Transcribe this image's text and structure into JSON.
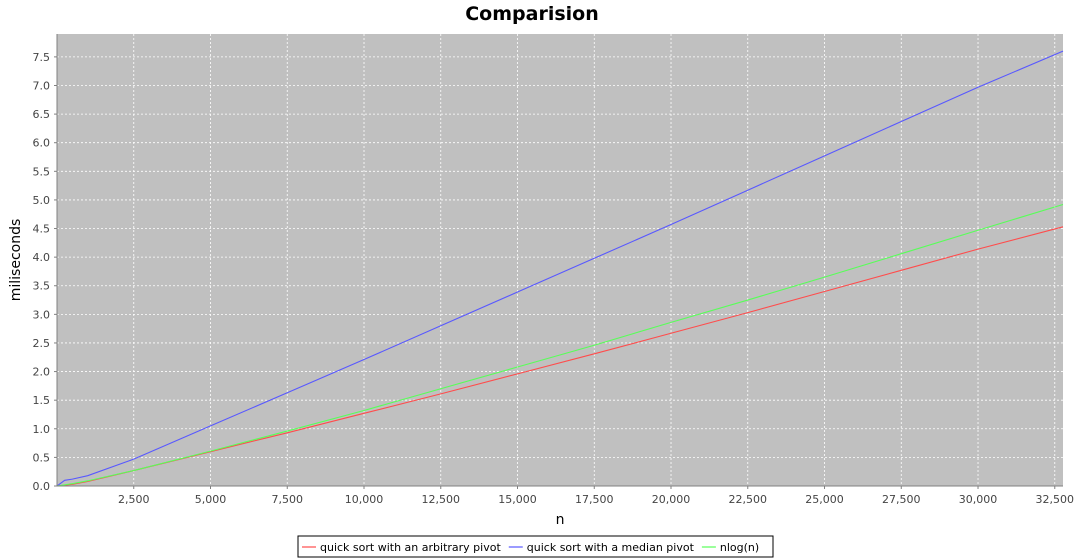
{
  "chart_data": {
    "type": "line",
    "title": "Comparision",
    "xlabel": "n",
    "ylabel": "miliseconds",
    "xlim": [
      0,
      32768
    ],
    "ylim": [
      0,
      7.9
    ],
    "x_ticks": [
      "2,500",
      "5,000",
      "7,500",
      "10,000",
      "12,500",
      "15,000",
      "17,500",
      "20,000",
      "22,500",
      "25,000",
      "27,500",
      "30,000",
      "32,500"
    ],
    "y_ticks": [
      "0.0",
      "0.5",
      "1.0",
      "1.5",
      "2.0",
      "2.5",
      "3.0",
      "3.5",
      "4.0",
      "4.5",
      "5.0",
      "5.5",
      "6.0",
      "6.5",
      "7.0",
      "7.5"
    ],
    "grid": true,
    "background": "#c0c0c0",
    "legend_position": "bottom",
    "series": [
      {
        "name": "quick sort with an arbitrary pivot",
        "color": "#ff4c4c",
        "x": [
          0,
          500,
          1000,
          2500,
          5000,
          7500,
          10000,
          12500,
          15000,
          17500,
          20000,
          22500,
          25000,
          27500,
          30000,
          32768
        ],
        "y": [
          0,
          0.03,
          0.08,
          0.27,
          0.6,
          0.93,
          1.27,
          1.61,
          1.96,
          2.31,
          2.67,
          3.03,
          3.4,
          3.77,
          4.14,
          4.53
        ]
      },
      {
        "name": "quick sort with a median pivot",
        "color": "#5858ff",
        "x": [
          0,
          250,
          500,
          1000,
          2500,
          5000,
          7500,
          10000,
          12500,
          15000,
          17500,
          20000,
          22500,
          25000,
          27500,
          30000,
          32768
        ],
        "y": [
          0,
          0.1,
          0.12,
          0.18,
          0.47,
          1.05,
          1.63,
          2.21,
          2.8,
          3.39,
          3.98,
          4.57,
          5.17,
          5.77,
          6.37,
          6.97,
          7.6
        ]
      },
      {
        "name": "nlog(n)",
        "color": "#58ff58",
        "x": [
          0,
          500,
          1000,
          2500,
          5000,
          7500,
          10000,
          12500,
          15000,
          17500,
          20000,
          22500,
          25000,
          27500,
          30000,
          32768
        ],
        "y": [
          0,
          0.04,
          0.09,
          0.27,
          0.61,
          0.96,
          1.32,
          1.7,
          2.08,
          2.46,
          2.86,
          3.25,
          3.65,
          4.06,
          4.47,
          4.92
        ]
      }
    ]
  }
}
